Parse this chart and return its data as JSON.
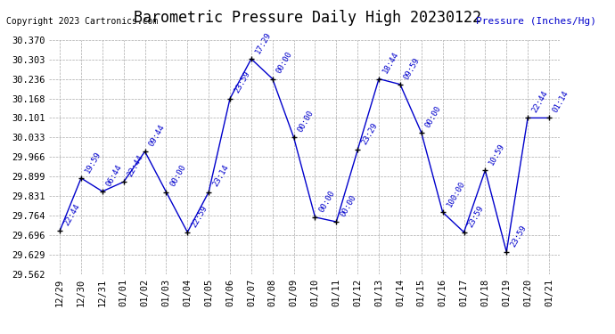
{
  "title": "Barometric Pressure Daily High 20230122",
  "ylabel": "Pressure (Inches/Hg)",
  "copyright": "Copyright 2023 Cartronics.com",
  "dates": [
    "12/29",
    "12/30",
    "12/31",
    "01/01",
    "01/02",
    "01/03",
    "01/04",
    "01/05",
    "01/06",
    "01/07",
    "01/08",
    "01/09",
    "01/10",
    "01/11",
    "01/12",
    "01/13",
    "01/14",
    "01/15",
    "01/16",
    "01/17",
    "01/18",
    "01/19",
    "01/20",
    "01/21"
  ],
  "values": [
    29.711,
    29.893,
    29.847,
    29.88,
    29.985,
    29.845,
    29.706,
    29.845,
    30.168,
    30.305,
    30.236,
    30.033,
    29.758,
    29.742,
    29.99,
    30.236,
    30.217,
    30.05,
    29.775,
    29.706,
    29.92,
    29.638,
    30.101,
    30.101
  ],
  "time_labels": [
    "22:44",
    "19:59",
    "06:44",
    "22:44",
    "09:44",
    "00:00",
    "22:59",
    "23:14",
    "23:59",
    "17:29",
    "00:00",
    "00:00",
    "00:00",
    "00:00",
    "23:29",
    "18:44",
    "09:59",
    "00:00",
    "100:00",
    "23:59",
    "10:59",
    "23:59",
    "22:44",
    "01:14"
  ],
  "ylim_min": 29.562,
  "ylim_max": 30.37,
  "yticks": [
    29.562,
    29.629,
    29.696,
    29.764,
    29.831,
    29.899,
    29.966,
    30.033,
    30.101,
    30.168,
    30.236,
    30.303,
    30.37
  ],
  "line_color": "#0000cc",
  "marker_color": "#000000",
  "label_color": "#0000cc",
  "title_color": "#000000",
  "copyright_color": "#000000",
  "ylabel_color": "#0000cc",
  "bg_color": "#ffffff",
  "grid_color": "#aaaaaa",
  "title_fontsize": 12,
  "label_fontsize": 6.5,
  "tick_fontsize": 7.5,
  "copyright_fontsize": 7,
  "ylabel_fontsize": 8
}
